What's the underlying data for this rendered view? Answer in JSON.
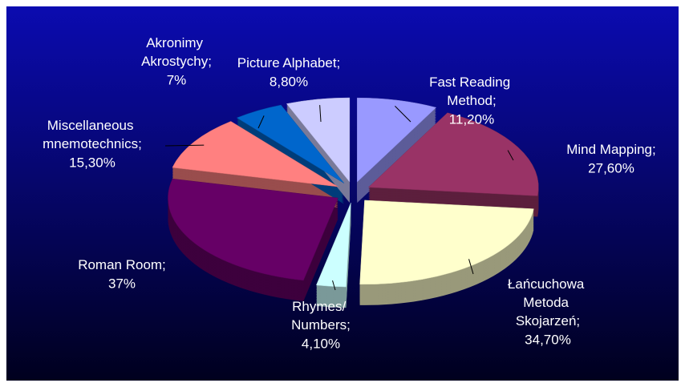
{
  "chart_data": {
    "type": "pie3d",
    "categories": [
      "Fast Reading Method;",
      "Mind Mapping;",
      "Łańcuchowa Metoda Skojarzeń;",
      "Rhymes/ Numbers;",
      "Roman Room;",
      "Miscellaneous mnemotechnics;",
      "Akronimy Akrostychy;",
      "Picture Alphabet;"
    ],
    "values": [
      11.2,
      27.6,
      34.7,
      4.1,
      37,
      15.3,
      7,
      8.8
    ],
    "value_labels": [
      "11,20%",
      "27,60%",
      "34,70%",
      "4,10%",
      "37%",
      "15,30%",
      "7%",
      "8,80%"
    ],
    "colors": [
      "#9999ff",
      "#993366",
      "#ffffcc",
      "#ccffff",
      "#660066",
      "#ff8080",
      "#0066cc",
      "#ccccff"
    ]
  }
}
